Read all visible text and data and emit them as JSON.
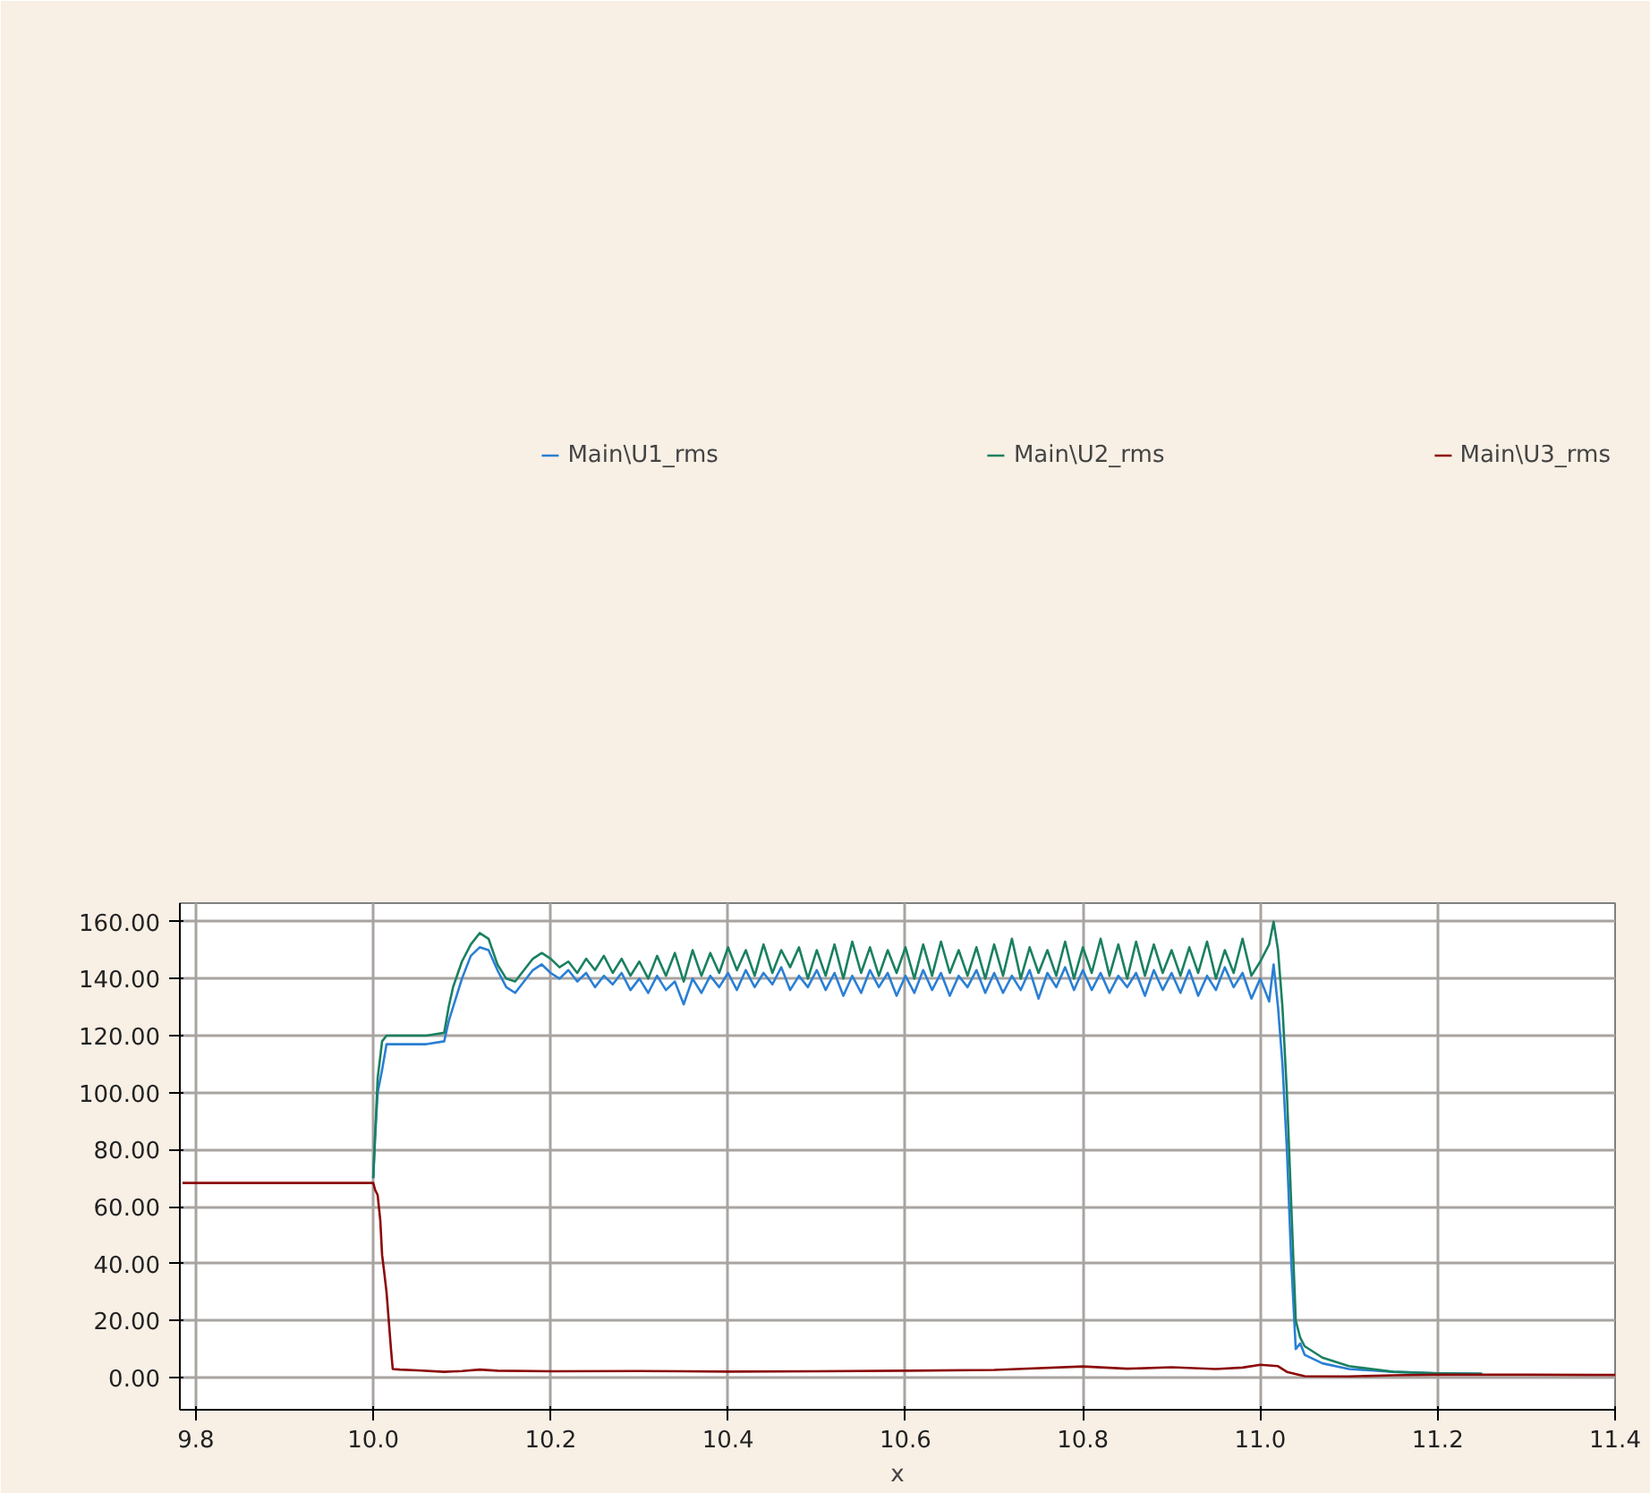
{
  "chart_data": {
    "type": "line",
    "xlabel": "x",
    "legend": "top",
    "grid": true,
    "marker": "none",
    "line_style": "solid",
    "xlim": [
      9.782,
      11.4
    ],
    "ylim": [
      -11.3,
      166.5
    ],
    "xticks": [
      9.8,
      {
        "value": 10.0,
        "label": "10.0"
      },
      10.2,
      10.4,
      10.6,
      10.8,
      {
        "value": 11.0,
        "label": "11.0"
      },
      11.2,
      11.4
    ],
    "yticks": [
      {
        "value": 0,
        "label": "0.00"
      },
      {
        "value": 20,
        "label": "20.00"
      },
      {
        "value": 40,
        "label": "40.00"
      },
      {
        "value": 60,
        "label": "60.00"
      },
      {
        "value": 80,
        "label": "80.00"
      },
      {
        "value": 100,
        "label": "100.00"
      },
      {
        "value": 120,
        "label": "120.00"
      },
      {
        "value": 140,
        "label": "140.00"
      },
      {
        "value": 160,
        "label": "160.00"
      }
    ],
    "series": [
      {
        "name": "Main\\U1_rms",
        "color": "#2a7fd4",
        "x": [
          10.0,
          10.002,
          10.005,
          10.01,
          10.015,
          10.02,
          10.04,
          10.06,
          10.08,
          10.085,
          10.09,
          10.1,
          10.11,
          10.12,
          10.13,
          10.14,
          10.15,
          10.16,
          10.17,
          10.18,
          10.19,
          10.2,
          10.21,
          10.22,
          10.23,
          10.24,
          10.25,
          10.26,
          10.27,
          10.28,
          10.29,
          10.3,
          10.31,
          10.32,
          10.33,
          10.34,
          10.35,
          10.36,
          10.37,
          10.38,
          10.39,
          10.4,
          10.41,
          10.42,
          10.43,
          10.44,
          10.45,
          10.46,
          10.47,
          10.48,
          10.49,
          10.5,
          10.51,
          10.52,
          10.53,
          10.54,
          10.55,
          10.56,
          10.57,
          10.58,
          10.59,
          10.6,
          10.61,
          10.62,
          10.63,
          10.64,
          10.65,
          10.66,
          10.67,
          10.68,
          10.69,
          10.7,
          10.71,
          10.72,
          10.73,
          10.74,
          10.75,
          10.76,
          10.77,
          10.78,
          10.79,
          10.8,
          10.81,
          10.82,
          10.83,
          10.84,
          10.85,
          10.86,
          10.87,
          10.88,
          10.89,
          10.9,
          10.91,
          10.92,
          10.93,
          10.94,
          10.95,
          10.96,
          10.97,
          10.98,
          10.99,
          11.0,
          11.01,
          11.015,
          11.02,
          11.025,
          11.03,
          11.035,
          11.04,
          11.045,
          11.05,
          11.07,
          11.1,
          11.15,
          11.2,
          11.25
        ],
        "values": [
          70,
          84,
          100,
          108,
          117,
          117,
          117,
          117,
          118,
          125,
          130,
          140,
          148,
          151,
          150,
          143,
          137,
          135,
          139,
          143,
          145,
          142,
          140,
          143,
          139,
          142,
          137,
          141,
          138,
          142,
          136,
          140,
          135,
          141,
          136,
          139,
          131,
          140,
          135,
          141,
          137,
          142,
          136,
          143,
          137,
          142,
          138,
          144,
          136,
          141,
          137,
          143,
          136,
          142,
          134,
          141,
          135,
          143,
          137,
          142,
          134,
          141,
          135,
          143,
          136,
          142,
          134,
          141,
          137,
          143,
          135,
          142,
          135,
          141,
          136,
          143,
          133,
          142,
          137,
          144,
          136,
          143,
          136,
          142,
          135,
          141,
          137,
          142,
          134,
          143,
          136,
          142,
          135,
          143,
          134,
          141,
          136,
          144,
          137,
          142,
          133,
          140,
          132,
          145,
          130,
          110,
          80,
          40,
          10,
          12,
          8,
          5,
          3,
          2,
          1.5,
          1.3
        ]
      },
      {
        "name": "Main\\U2_rms",
        "color": "#1a8061",
        "x": [
          10.0,
          10.002,
          10.005,
          10.01,
          10.015,
          10.02,
          10.04,
          10.06,
          10.08,
          10.085,
          10.09,
          10.1,
          10.11,
          10.12,
          10.13,
          10.14,
          10.15,
          10.16,
          10.17,
          10.18,
          10.19,
          10.2,
          10.21,
          10.22,
          10.23,
          10.24,
          10.25,
          10.26,
          10.27,
          10.28,
          10.29,
          10.3,
          10.31,
          10.32,
          10.33,
          10.34,
          10.35,
          10.36,
          10.37,
          10.38,
          10.39,
          10.4,
          10.41,
          10.42,
          10.43,
          10.44,
          10.45,
          10.46,
          10.47,
          10.48,
          10.49,
          10.5,
          10.51,
          10.52,
          10.53,
          10.54,
          10.55,
          10.56,
          10.57,
          10.58,
          10.59,
          10.6,
          10.61,
          10.62,
          10.63,
          10.64,
          10.65,
          10.66,
          10.67,
          10.68,
          10.69,
          10.7,
          10.71,
          10.72,
          10.73,
          10.74,
          10.75,
          10.76,
          10.77,
          10.78,
          10.79,
          10.8,
          10.81,
          10.82,
          10.83,
          10.84,
          10.85,
          10.86,
          10.87,
          10.88,
          10.89,
          10.9,
          10.91,
          10.92,
          10.93,
          10.94,
          10.95,
          10.96,
          10.97,
          10.98,
          10.99,
          11.0,
          11.01,
          11.015,
          11.02,
          11.025,
          11.03,
          11.035,
          11.04,
          11.045,
          11.05,
          11.07,
          11.1,
          11.15,
          11.2,
          11.25
        ],
        "values": [
          70,
          84,
          105,
          118,
          120,
          120,
          120,
          120,
          121,
          130,
          137,
          146,
          152,
          156,
          154,
          145,
          140,
          139,
          143,
          147,
          149,
          147,
          144,
          146,
          142,
          147,
          143,
          148,
          142,
          147,
          141,
          146,
          140,
          148,
          141,
          149,
          139,
          150,
          141,
          149,
          142,
          151,
          143,
          150,
          141,
          152,
          142,
          150,
          144,
          151,
          140,
          150,
          141,
          152,
          140,
          153,
          142,
          151,
          141,
          150,
          142,
          151,
          140,
          152,
          141,
          153,
          142,
          150,
          141,
          151,
          140,
          152,
          141,
          154,
          140,
          151,
          142,
          150,
          141,
          153,
          140,
          151,
          142,
          154,
          141,
          152,
          140,
          153,
          141,
          152,
          142,
          150,
          141,
          151,
          142,
          153,
          140,
          150,
          142,
          154,
          141,
          146,
          152,
          160,
          150,
          130,
          100,
          60,
          20,
          14,
          11,
          7,
          4,
          2,
          1.5,
          1.3
        ]
      },
      {
        "name": "Main\\U3_rms",
        "color": "#8b0a0a",
        "x": [
          9.785,
          10.0,
          10.002,
          10.005,
          10.008,
          10.01,
          10.012,
          10.015,
          10.02,
          10.022,
          10.03,
          10.05,
          10.08,
          10.1,
          10.12,
          10.14,
          10.2,
          10.3,
          10.4,
          10.5,
          10.6,
          10.7,
          10.8,
          10.85,
          10.9,
          10.95,
          10.98,
          11.0,
          11.02,
          11.03,
          11.05,
          11.1,
          11.15,
          11.2,
          11.3,
          11.4
        ],
        "values": [
          68.3,
          68.3,
          66,
          64,
          55,
          43,
          38,
          30,
          10,
          3,
          2.8,
          2.5,
          2.0,
          2.3,
          2.8,
          2.4,
          2.2,
          2.3,
          2.1,
          2.2,
          2.4,
          2.7,
          3.9,
          3.1,
          3.6,
          3.0,
          3.5,
          4.5,
          4.0,
          2.0,
          0.5,
          0.4,
          0.8,
          1.0,
          1.0,
          0.9
        ]
      }
    ]
  }
}
